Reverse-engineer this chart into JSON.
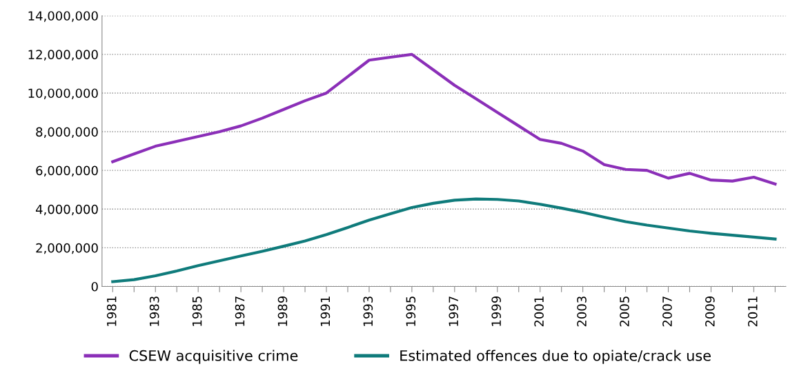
{
  "chart_data": {
    "type": "line",
    "categories": [
      "1981",
      null,
      "1983",
      null,
      "1985",
      null,
      "1987",
      null,
      "1989",
      null,
      "1991",
      null,
      "1993",
      null,
      "1995",
      null,
      "1997",
      null,
      "1999",
      null,
      "2001",
      null,
      "2003",
      null,
      "2005",
      null,
      "2007",
      null,
      "2009",
      null,
      "2011",
      null
    ],
    "series": [
      {
        "name": "CSEW acquisitive crime",
        "color": "#8b2fb8",
        "values": [
          6450000,
          6850000,
          7250000,
          7500000,
          7750000,
          8000000,
          8300000,
          8700000,
          9150000,
          9600000,
          10000000,
          10850000,
          11700000,
          11850000,
          12000000,
          11200000,
          10400000,
          9700000,
          9000000,
          8300000,
          7600000,
          7400000,
          7000000,
          6300000,
          6050000,
          6000000,
          5600000,
          5850000,
          5500000,
          5450000,
          5650000,
          5300000
        ]
      },
      {
        "name": "Estimated offences due to opiate/crack use",
        "color": "#0f7b7b",
        "values": [
          250000,
          350000,
          550000,
          800000,
          1080000,
          1330000,
          1580000,
          1820000,
          2080000,
          2350000,
          2680000,
          3050000,
          3430000,
          3760000,
          4080000,
          4300000,
          4460000,
          4520000,
          4500000,
          4420000,
          4250000,
          4050000,
          3830000,
          3580000,
          3350000,
          3170000,
          3020000,
          2870000,
          2750000,
          2650000,
          2550000,
          2450000
        ]
      }
    ],
    "ylim": [
      0,
      14000000
    ],
    "yticks": [
      {
        "value": 0,
        "label": "0"
      },
      {
        "value": 2000000,
        "label": "2,000,000"
      },
      {
        "value": 4000000,
        "label": "4,000,000"
      },
      {
        "value": 6000000,
        "label": "6,000,000"
      },
      {
        "value": 8000000,
        "label": "8,000,000"
      },
      {
        "value": 10000000,
        "label": "10,000,000"
      },
      {
        "value": 12000000,
        "label": "12,000,000"
      },
      {
        "value": 14000000,
        "label": "14,000,000"
      }
    ],
    "grid": "y",
    "legend": "bottom",
    "marker": "none",
    "line_style": "solid"
  }
}
